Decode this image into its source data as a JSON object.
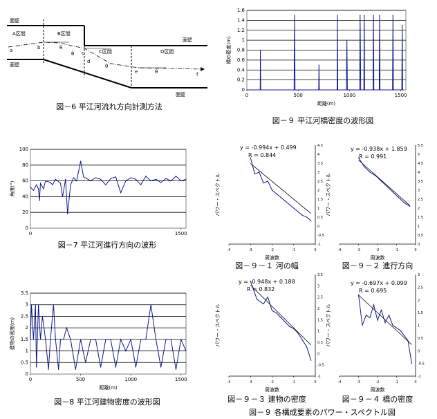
{
  "figure6": {
    "caption": "図－6 平江河流れ方向計測方法",
    "sections": [
      "A区間",
      "B区間",
      "C区間",
      "D区間"
    ],
    "wall_labels": [
      "面壁",
      "面壁",
      "面壁",
      "面壁"
    ],
    "points": [
      "a",
      "b",
      "c",
      "d",
      "e",
      "f"
    ],
    "angles": [
      "θ",
      "θ",
      "θ",
      "θ"
    ]
  },
  "captions": {
    "fig7": "図－7 平江河進行方向の波形",
    "fig8": "図－8 平江河建物密度の波形図",
    "fig9_top": "図－９ 平江河橋密度の波形図",
    "fig91": "図－９－１ 河の幅",
    "fig92": "図－９－２ 進行方向",
    "fig93": "図－９－３ 建物の密度",
    "fig94": "図－９－４ 橋の密度",
    "fig9_bottom": "図－９ 各構成要素のパワー・スペクトル図"
  },
  "chart_data": [
    {
      "id": "bridge-density",
      "type": "line",
      "title": "図－９ 平江河橋密度の波形図",
      "xlabel": "距離(m)",
      "ylabel": "橋の密度(m)",
      "xlim": [
        0,
        1550
      ],
      "ylim": [
        0,
        1.6
      ],
      "xticks": [
        "0",
        "500",
        "1000",
        "1500"
      ],
      "yticks": [
        "0",
        "0.2",
        "0.4",
        "0.6",
        "0.8",
        "1",
        "1.2",
        "1.4",
        "1.6"
      ],
      "x": [
        0,
        130,
        132,
        135,
        460,
        465,
        470,
        700,
        703,
        706,
        880,
        883,
        886,
        970,
        975,
        980,
        1100,
        1104,
        1110,
        1140,
        1144,
        1148,
        1230,
        1234,
        1238,
        1290,
        1294,
        1298,
        1420,
        1424,
        1428,
        1510,
        1514,
        1518
      ],
      "values": [
        0,
        0,
        0.8,
        0,
        0,
        1.5,
        0,
        0,
        0.5,
        0,
        0,
        1.5,
        0,
        0,
        1.0,
        0,
        0,
        1.5,
        0,
        0,
        1.5,
        0,
        0,
        1.5,
        0,
        0,
        1.5,
        0,
        0,
        1.5,
        0,
        0,
        1.3,
        0
      ]
    },
    {
      "id": "direction",
      "type": "line",
      "title": "図－7 平江河進行方向の波形",
      "ylabel": "角度(°)",
      "xlim": [
        0,
        1550
      ],
      "ylim": [
        0,
        100
      ],
      "xticks": [
        "0",
        "1500"
      ],
      "yticks": [
        "0",
        "20",
        "40",
        "60",
        "80",
        "100"
      ],
      "x": [
        0,
        30,
        60,
        80,
        90,
        100,
        130,
        150,
        200,
        220,
        250,
        300,
        320,
        350,
        370,
        400,
        430,
        460,
        500,
        530,
        560,
        600,
        650,
        700,
        750,
        800,
        850,
        900,
        950,
        1000,
        1050,
        1100,
        1150,
        1200,
        1250,
        1300,
        1350,
        1400,
        1450,
        1500,
        1550
      ],
      "values": [
        52,
        48,
        55,
        50,
        35,
        57,
        50,
        60,
        58,
        55,
        62,
        57,
        40,
        62,
        18,
        55,
        64,
        60,
        85,
        65,
        63,
        60,
        64,
        62,
        55,
        63,
        65,
        45,
        60,
        64,
        62,
        55,
        66,
        60,
        62,
        58,
        63,
        60,
        66,
        60,
        62
      ]
    },
    {
      "id": "building-density",
      "type": "line",
      "title": "図－8 平江河建物密度の波形図",
      "xlabel": "距離(m)",
      "ylabel": "建物の密度(m)",
      "xlim": [
        0,
        1550
      ],
      "ylim": [
        0,
        3.5
      ],
      "xticks": [
        "0",
        "500",
        "1000",
        "1500"
      ],
      "yticks": [
        "0",
        "0.5",
        "1",
        "1.5",
        "2",
        "2.5",
        "3",
        "3.5"
      ],
      "x": [
        0,
        10,
        30,
        50,
        60,
        80,
        100,
        120,
        150,
        180,
        200,
        230,
        250,
        280,
        300,
        330,
        360,
        400,
        450,
        500,
        550,
        600,
        650,
        700,
        750,
        800,
        850,
        900,
        950,
        1000,
        1050,
        1100,
        1150,
        1200,
        1250,
        1300,
        1350,
        1400,
        1450,
        1500,
        1550
      ],
      "values": [
        1.5,
        3,
        1.5,
        3,
        0.3,
        3,
        1.5,
        2.5,
        1.5,
        0.2,
        1.5,
        3,
        1.5,
        0.2,
        1.5,
        1.5,
        2,
        1.5,
        0.2,
        1.5,
        0.5,
        1.5,
        1.5,
        0.3,
        1.5,
        1.5,
        0.3,
        1.5,
        1,
        1.5,
        0.3,
        1.5,
        1.5,
        3,
        1.5,
        0.3,
        1.5,
        1.5,
        0.2,
        1.5,
        1
      ]
    },
    {
      "id": "psd-width",
      "type": "line",
      "title": "図－９－１ 河の幅",
      "xlabel": "周波数",
      "ylabel": "パワー・スペクトル",
      "xlim": [
        -4,
        0
      ],
      "ylim": [
        -1,
        4.5
      ],
      "equation": "y = -0.994x + 0.499",
      "r_text": "R = 0.844",
      "xticks": [
        "-4",
        "-3",
        "-2",
        "-1",
        "0"
      ],
      "yticks": [
        "-1",
        "-0.5",
        "0",
        "0.5",
        "1",
        "1.5",
        "2",
        "2.5",
        "3",
        "3.5",
        "4",
        "4.5"
      ],
      "x": [
        -3.0,
        -2.8,
        -2.6,
        -2.4,
        -2.2,
        -2.0,
        -1.8,
        -1.6,
        -1.4,
        -1.2,
        -1.0,
        -0.8,
        -0.6,
        -0.4,
        -0.2
      ],
      "values": [
        3.8,
        2.9,
        3.0,
        2.4,
        2.5,
        2.0,
        1.8,
        1.6,
        1.4,
        1.2,
        1.0,
        0.8,
        0.6,
        0.5,
        0.3
      ],
      "fit": {
        "slope": -0.994,
        "intercept": 0.499
      }
    },
    {
      "id": "psd-direction",
      "type": "line",
      "title": "図－９－２ 進行方向",
      "xlabel": "周波数",
      "ylabel": "パワー・スペクトル",
      "xlim": [
        -4,
        0
      ],
      "ylim": [
        0,
        5.5
      ],
      "equation": "y = -0.938x + 1.859",
      "r_text": "R = 0.991",
      "xticks": [
        "-4",
        "-3",
        "-2",
        "-1",
        "0"
      ],
      "yticks": [
        "0",
        "0.5",
        "1",
        "1.5",
        "2",
        "2.5",
        "3",
        "3.5",
        "4",
        "4.5",
        "5",
        "5.5"
      ],
      "x": [
        -3.0,
        -2.7,
        -2.4,
        -2.1,
        -1.8,
        -1.5,
        -1.2,
        -0.9,
        -0.6,
        -0.3
      ],
      "values": [
        4.8,
        4.3,
        4.0,
        3.8,
        3.5,
        3.2,
        2.9,
        2.6,
        2.3,
        2.1
      ],
      "fit": {
        "slope": -0.938,
        "intercept": 1.859
      }
    },
    {
      "id": "psd-building",
      "type": "line",
      "title": "図－９－３ 建物の密度",
      "xlabel": "周波数",
      "ylabel": "パワー・スペクトル",
      "xlim": [
        -4,
        0
      ],
      "ylim": [
        -1,
        3.5
      ],
      "equation": "y = -0.948x + 0.188",
      "r_text": "R = 0.832",
      "xticks": [
        "-4",
        "-3",
        "-2",
        "-1",
        "0"
      ],
      "yticks": [
        "-1",
        "-0.5",
        "0",
        "0.5",
        "1",
        "1.5",
        "2",
        "2.5",
        "3",
        "3.5"
      ],
      "x": [
        -3.0,
        -2.7,
        -2.4,
        -2.2,
        -2.0,
        -1.8,
        -1.6,
        -1.4,
        -1.2,
        -1.0,
        -0.8,
        -0.6,
        -0.4,
        -0.2
      ],
      "values": [
        3.2,
        2.4,
        2.2,
        2.5,
        1.9,
        1.8,
        1.6,
        1.4,
        1.2,
        1.1,
        0.9,
        0.6,
        0.3,
        -0.3
      ],
      "fit": {
        "slope": -0.948,
        "intercept": 0.188
      }
    },
    {
      "id": "psd-bridge",
      "type": "line",
      "title": "図－９－４ 橋の密度",
      "xlabel": "周波数",
      "ylabel": "パワー・スペクトル",
      "xlim": [
        -4,
        0
      ],
      "ylim": [
        -1,
        3
      ],
      "equation": "y = -0.697x + 0.099",
      "r_text": "R = 0.695",
      "xticks": [
        "-4",
        "-3",
        "-2",
        "-1",
        "0"
      ],
      "yticks": [
        "-1",
        "-0.5",
        "0",
        "0.5",
        "1",
        "1.5",
        "2",
        "2.5",
        "3"
      ],
      "x": [
        -3.0,
        -2.8,
        -2.6,
        -2.4,
        -2.2,
        -2.0,
        -1.8,
        -1.6,
        -1.4,
        -1.2,
        -1.0,
        -0.8,
        -0.6,
        -0.4,
        -0.2
      ],
      "values": [
        2.2,
        1.0,
        1.4,
        1.3,
        1.8,
        1.2,
        1.6,
        1.1,
        1.4,
        1.0,
        0.9,
        0.8,
        0.6,
        0.4,
        -0.5
      ],
      "fit": {
        "slope": -0.697,
        "intercept": 0.099
      }
    }
  ]
}
